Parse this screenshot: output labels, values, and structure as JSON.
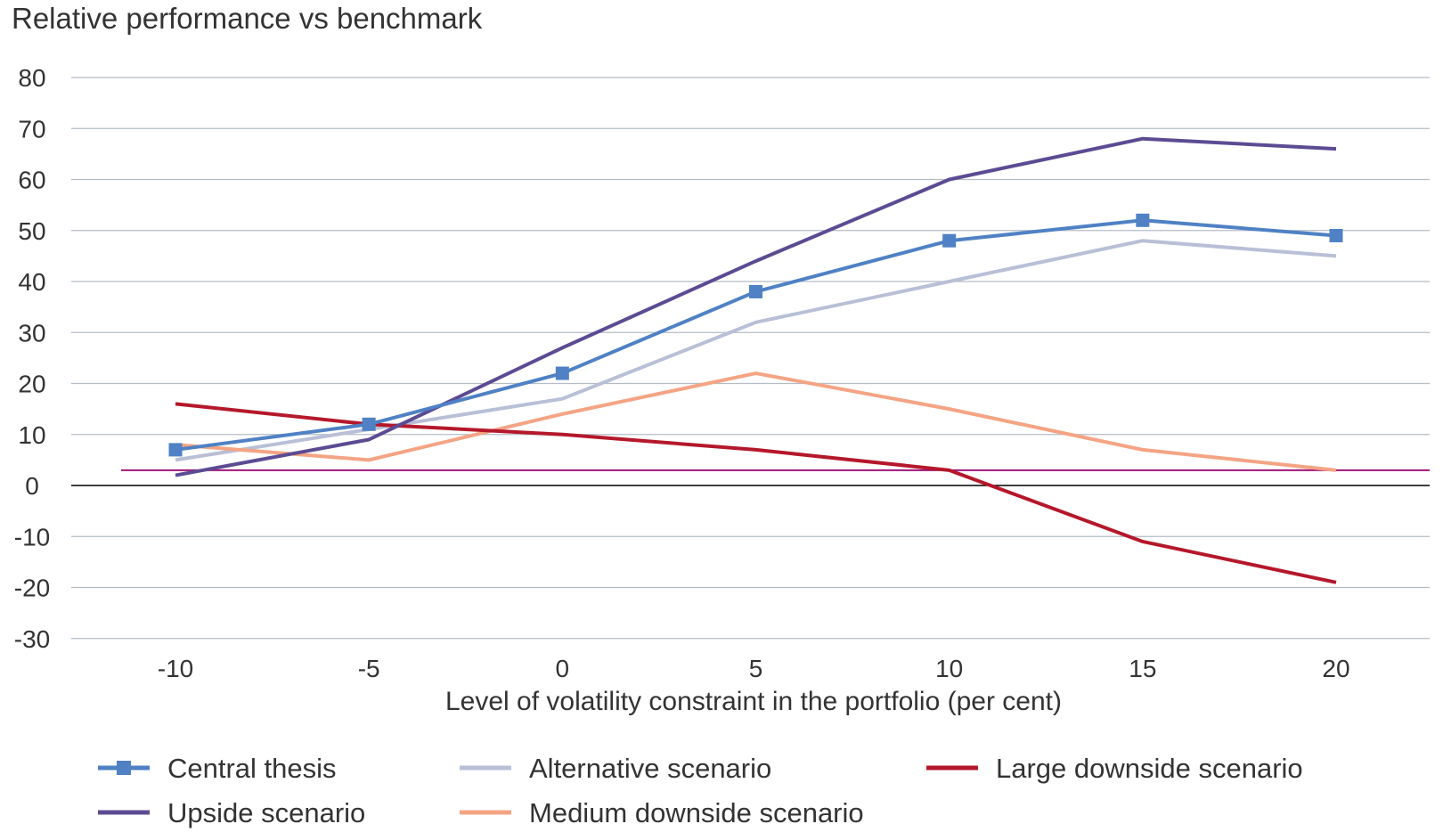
{
  "chart_data": {
    "type": "line",
    "title": "Relative performance vs benchmark",
    "xlabel": "Level of volatility constraint in the portfolio (per cent)",
    "ylabel": "",
    "x": [
      -10,
      -5,
      0,
      5,
      10,
      15,
      20
    ],
    "x_tick_labels": [
      "-10",
      "-5",
      "0",
      "5",
      "10",
      "15",
      "20"
    ],
    "ylim": [
      -30,
      80
    ],
    "y_ticks": [
      80,
      70,
      60,
      50,
      40,
      30,
      20,
      10,
      0,
      -10,
      -20,
      -30
    ],
    "y_tick_labels": [
      "80",
      "70",
      "60",
      "50",
      "40",
      "30",
      "20",
      "10",
      "0",
      "-10",
      "-20",
      "-30"
    ],
    "grid": true,
    "reference_line": {
      "value": 3,
      "color": "#a0157a"
    },
    "legend_position": "bottom",
    "series": [
      {
        "name": "Central thesis",
        "color": "#4f81c4",
        "marker": "square",
        "values": [
          7,
          12,
          22,
          38,
          48,
          52,
          49
        ]
      },
      {
        "name": "Alternative scenario",
        "color": "#b8bfd6",
        "marker": "none",
        "values": [
          5,
          11,
          17,
          32,
          40,
          48,
          45
        ]
      },
      {
        "name": "Large downside scenario",
        "color": "#b5182b",
        "marker": "none",
        "values": [
          16,
          12,
          10,
          7,
          3,
          -11,
          -19
        ]
      },
      {
        "name": "Upside scenario",
        "color": "#5c4b93",
        "marker": "none",
        "values": [
          2,
          9,
          27,
          44,
          60,
          68,
          66
        ]
      },
      {
        "name": "Medium downside scenario",
        "color": "#f4a484",
        "marker": "none",
        "values": [
          8,
          5,
          14,
          22,
          15,
          7,
          3
        ]
      }
    ]
  }
}
